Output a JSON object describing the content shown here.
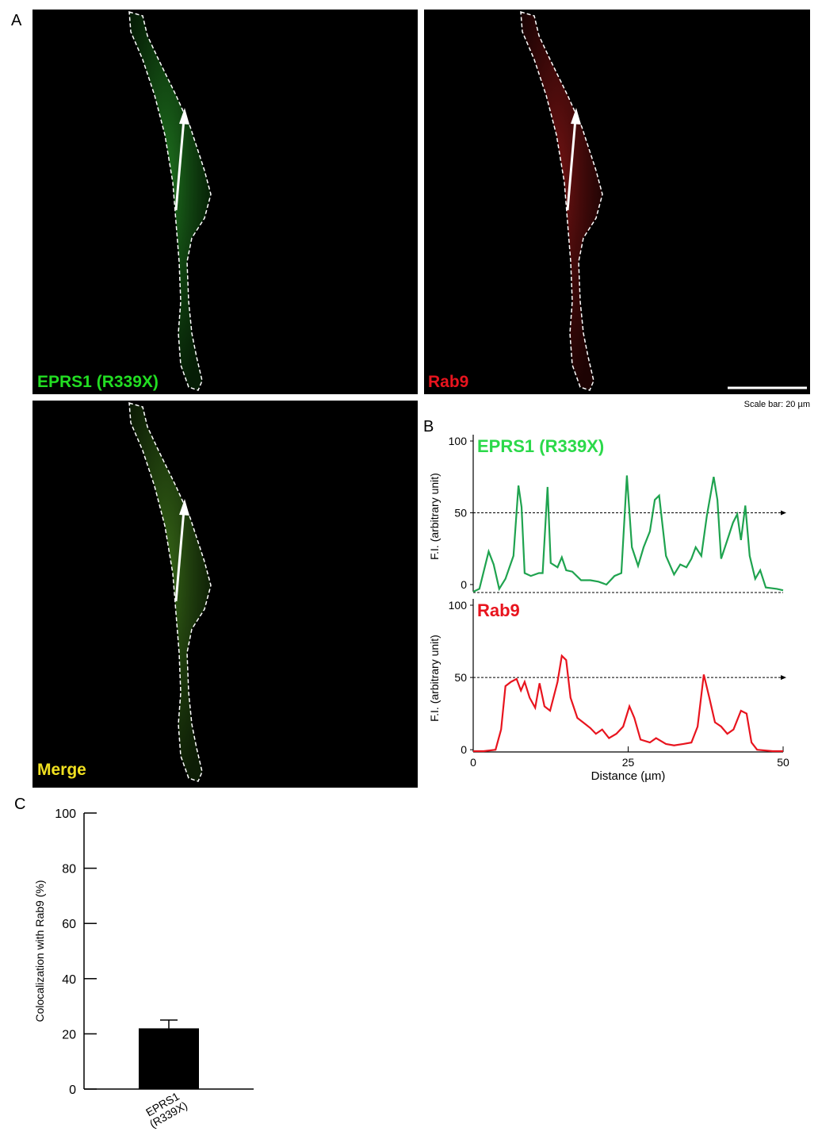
{
  "panel_labels": [
    "A",
    "B",
    "C"
  ],
  "images": [
    {
      "label": "EPRS1 (R339X)"
    },
    {
      "label": "Rab9"
    },
    {
      "label": "Merge"
    }
  ],
  "scale_bar": "Scale bar: 20 µm",
  "chart_data": [
    {
      "type": "line",
      "title": "EPRS1 (R339X)",
      "ylabel": "F.I. (arbitrary unit)",
      "color": "#1fa34f",
      "title_color": "#2bd94a",
      "x": [
        0,
        1,
        2.5,
        3.3,
        4.2,
        5.2,
        6.5,
        7.3,
        7.8,
        8.3,
        9.3,
        10.6,
        11.2,
        12,
        12.5,
        13.6,
        14.3,
        15,
        16,
        17.4,
        18.9,
        20.2,
        21.5,
        22.8,
        23.9,
        24.8,
        25.6,
        26.6,
        27.5,
        28.5,
        29.3,
        30,
        31.1,
        32.4,
        33.4,
        34.4,
        35.2,
        35.9,
        36.8,
        37.7,
        38.8,
        39.4,
        40,
        41,
        41.9,
        42.6,
        43.2,
        43.9,
        44.6,
        45.5,
        46.3,
        47.2,
        49,
        50
      ],
      "values": [
        -5,
        -3,
        23,
        14,
        -3,
        4,
        20,
        69,
        54,
        8,
        6,
        8,
        8,
        68,
        15,
        12,
        19,
        10,
        9,
        3,
        3,
        2,
        0,
        6,
        8,
        76,
        26,
        13,
        26,
        37,
        59,
        62,
        20,
        7,
        14,
        12,
        18,
        26,
        20,
        48,
        75,
        59,
        18,
        31,
        43,
        49,
        31,
        55,
        20,
        4,
        10,
        -2,
        -3,
        -4
      ],
      "xlim": [
        0,
        50
      ],
      "ylim": [
        -5,
        100
      ],
      "yticks": [
        0,
        50,
        100
      ],
      "reference_line": 50
    },
    {
      "type": "line",
      "title": "Rab9",
      "ylabel": "F.I. (arbitrary unit)",
      "xlabel": "Distance (µm)",
      "color": "#e8141e",
      "title_color": "#e8141e",
      "x": [
        0,
        1.7,
        3.6,
        4.5,
        5.2,
        6.1,
        7,
        7.7,
        8.3,
        9.1,
        10,
        10.7,
        11.5,
        12.4,
        13.6,
        14.3,
        15,
        15.7,
        16.8,
        18,
        18.9,
        19.8,
        20.8,
        21.9,
        23.1,
        24.2,
        25.2,
        26,
        27,
        28.5,
        29.5,
        31.1,
        32.4,
        33.9,
        35.2,
        36.2,
        37.2,
        38.1,
        39,
        40,
        41,
        42,
        43.2,
        44.1,
        44.9,
        45.8,
        48.3,
        50
      ],
      "values": [
        -1,
        -1,
        0,
        14,
        44,
        47,
        49,
        41,
        47,
        36,
        29,
        46,
        30,
        27,
        47,
        65,
        62,
        36,
        22,
        18,
        15,
        11,
        14,
        8,
        11,
        16,
        30,
        22,
        7,
        5,
        8,
        4,
        3,
        4,
        5,
        16,
        52,
        36,
        19,
        16,
        11,
        14,
        27,
        25,
        5,
        0,
        -1,
        -1
      ],
      "xlim": [
        0,
        50
      ],
      "ylim": [
        -1,
        100
      ],
      "xticks": [
        0,
        25,
        50
      ],
      "yticks": [
        0,
        50,
        100
      ],
      "reference_line": 50
    },
    {
      "type": "bar",
      "ylabel": "Colocalization with Rab9 (%)",
      "categories": [
        "EPRS1 (R339X)"
      ],
      "values": [
        22
      ],
      "errors": [
        3
      ],
      "color": "#000000",
      "ylim": [
        0,
        100
      ],
      "yticks": [
        0,
        20,
        40,
        60,
        80,
        100
      ]
    }
  ]
}
